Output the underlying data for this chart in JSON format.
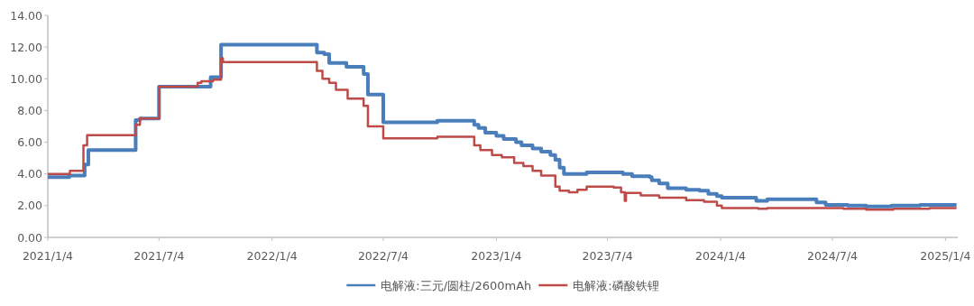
{
  "chart_data": {
    "type": "step",
    "xlim": [
      "2021-01-04",
      "2025-01-24"
    ],
    "xticks": [
      {
        "value": "2021-01-04",
        "label": "2021/1/4"
      },
      {
        "value": "2021-07-04",
        "label": "2021/7/4"
      },
      {
        "value": "2022-01-04",
        "label": "2022/1/4"
      },
      {
        "value": "2022-07-04",
        "label": "2022/7/4"
      },
      {
        "value": "2023-01-04",
        "label": "2023/1/4"
      },
      {
        "value": "2023-07-04",
        "label": "2023/7/4"
      },
      {
        "value": "2024-01-04",
        "label": "2024/1/4"
      },
      {
        "value": "2024-07-04",
        "label": "2024/7/4"
      },
      {
        "value": "2025-01-04",
        "label": "2025/1/4"
      }
    ],
    "ylim": [
      0,
      14
    ],
    "yticks": [
      {
        "value": 0,
        "label": "0.00"
      },
      {
        "value": 2,
        "label": "2.00"
      },
      {
        "value": 4,
        "label": "4.00"
      },
      {
        "value": 6,
        "label": "6.00"
      },
      {
        "value": 8,
        "label": "8.00"
      },
      {
        "value": 10,
        "label": "10.00"
      },
      {
        "value": 12,
        "label": "12.00"
      },
      {
        "value": 14,
        "label": "14.00"
      }
    ],
    "grid": false,
    "legend": "bottom",
    "series": [
      {
        "name": "电解液:三元/圆柱/2600mAh",
        "color": "#4a7ebb",
        "x": [
          "2021-01-04",
          "2021-02-08",
          "2021-03-05",
          "2021-03-11",
          "2021-05-27",
          "2021-06-03",
          "2021-07-04",
          "2021-09-26",
          "2021-10-13",
          "2022-03-18",
          "2022-03-30",
          "2022-04-07",
          "2022-05-05",
          "2022-06-02",
          "2022-06-09",
          "2022-07-04",
          "2022-09-30",
          "2022-11-29",
          "2022-12-06",
          "2022-12-17",
          "2023-01-04",
          "2023-01-16",
          "2023-02-05",
          "2023-02-14",
          "2023-03-04",
          "2023-03-18",
          "2023-04-02",
          "2023-04-10",
          "2023-04-17",
          "2023-04-24",
          "2023-05-31",
          "2023-07-29",
          "2023-08-13",
          "2023-09-11",
          "2023-09-14",
          "2023-09-26",
          "2023-10-10",
          "2023-11-09",
          "2023-12-01",
          "2023-12-15",
          "2023-12-29",
          "2024-01-06",
          "2024-03-02",
          "2024-03-20",
          "2024-06-08",
          "2024-06-23",
          "2024-07-29",
          "2024-08-28",
          "2024-10-08",
          "2024-11-24",
          "2025-01-22"
        ],
        "values": [
          3.8,
          3.9,
          4.6,
          5.5,
          7.4,
          7.5,
          9.5,
          10.1,
          12.15,
          11.65,
          11.55,
          11.0,
          10.75,
          10.3,
          9.0,
          7.25,
          7.35,
          7.1,
          6.9,
          6.6,
          6.4,
          6.2,
          6.0,
          5.8,
          5.6,
          5.4,
          5.2,
          4.9,
          4.4,
          4.0,
          4.1,
          4.0,
          3.85,
          3.8,
          3.6,
          3.4,
          3.1,
          3.0,
          2.95,
          2.75,
          2.6,
          2.5,
          2.3,
          2.4,
          2.2,
          2.05,
          2.0,
          1.95,
          2.0,
          2.05,
          2.05
        ]
      },
      {
        "name": "电解液:磷酸铁锂",
        "color": "#be4b48",
        "x": [
          "2021-01-04",
          "2021-02-09",
          "2021-03-03",
          "2021-03-09",
          "2021-05-27",
          "2021-06-03",
          "2021-07-04",
          "2021-09-05",
          "2021-09-11",
          "2021-09-30",
          "2021-10-13",
          "2021-10-16",
          "2022-03-18",
          "2022-03-27",
          "2022-04-07",
          "2022-04-18",
          "2022-05-07",
          "2022-06-02",
          "2022-06-09",
          "2022-07-04",
          "2022-09-30",
          "2022-11-29",
          "2022-12-09",
          "2022-12-28",
          "2023-01-13",
          "2023-02-02",
          "2023-02-17",
          "2023-03-04",
          "2023-03-18",
          "2023-04-10",
          "2023-04-17",
          "2023-05-02",
          "2023-05-16",
          "2023-05-31",
          "2023-07-14",
          "2023-07-26",
          "2023-08-01",
          "2023-08-03",
          "2023-08-27",
          "2023-09-26",
          "2023-11-09",
          "2023-12-08",
          "2023-12-29",
          "2024-01-06",
          "2024-03-05",
          "2024-03-20",
          "2024-07-22",
          "2024-08-28",
          "2024-10-11",
          "2024-12-09",
          "2025-01-22"
        ],
        "values": [
          4.0,
          4.2,
          5.8,
          6.45,
          7.1,
          7.5,
          9.5,
          9.75,
          9.85,
          9.95,
          11.3,
          11.05,
          10.5,
          10.0,
          9.75,
          9.3,
          8.75,
          8.3,
          7.0,
          6.25,
          6.35,
          5.8,
          5.5,
          5.2,
          5.05,
          4.7,
          4.5,
          4.2,
          3.9,
          3.2,
          2.95,
          2.85,
          3.0,
          3.2,
          3.15,
          2.85,
          2.3,
          2.8,
          2.65,
          2.5,
          2.35,
          2.25,
          2.0,
          1.85,
          1.8,
          1.85,
          1.8,
          1.75,
          1.8,
          1.85,
          1.85
        ]
      }
    ]
  }
}
